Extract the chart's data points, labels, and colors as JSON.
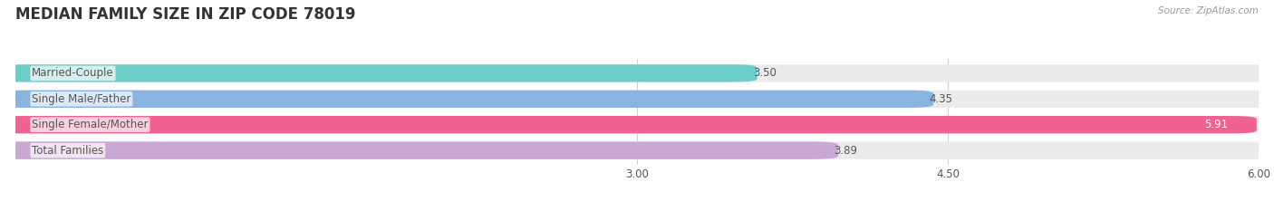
{
  "title": "MEDIAN FAMILY SIZE IN ZIP CODE 78019",
  "source": "Source: ZipAtlas.com",
  "categories": [
    "Married-Couple",
    "Single Male/Father",
    "Single Female/Mother",
    "Total Families"
  ],
  "values": [
    3.5,
    4.35,
    5.91,
    3.89
  ],
  "bar_colors": [
    "#6dcdc8",
    "#89b4e0",
    "#f06292",
    "#c9a8d4"
  ],
  "background_color": "#ffffff",
  "bar_bg_color": "#ebebeb",
  "xlim_data": [
    0,
    6.0
  ],
  "xaxis_min": 3.0,
  "xaxis_max": 6.0,
  "xticks": [
    3.0,
    4.5,
    6.0
  ],
  "xtick_labels": [
    "3.00",
    "4.50",
    "6.00"
  ],
  "label_fontsize": 8.5,
  "value_fontsize": 8.5,
  "title_fontsize": 12,
  "bar_height": 0.52,
  "label_color": "#555555",
  "value_color_inside": "#ffffff",
  "value_color_outside": "#555555",
  "grid_color": "#d0d0d0"
}
